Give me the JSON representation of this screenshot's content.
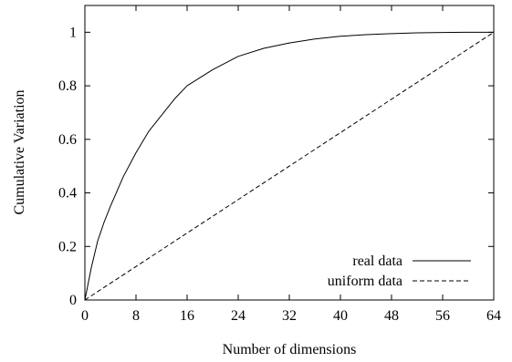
{
  "chart_data": {
    "type": "line",
    "title": "",
    "xlabel": "Number of dimensions",
    "ylabel": "Cumulative Variation",
    "xlim": [
      0,
      64
    ],
    "ylim": [
      0,
      1.1
    ],
    "xticks": [
      0,
      8,
      16,
      24,
      32,
      40,
      48,
      56,
      64
    ],
    "xtick_labels": [
      "0",
      "8",
      "16",
      "24",
      "32",
      "40",
      "48",
      "56",
      "64"
    ],
    "yticks": [
      0,
      0.2,
      0.4,
      0.6,
      0.8,
      1
    ],
    "ytick_labels": [
      "0",
      "0.2",
      "0.4",
      "0.6",
      "0.8",
      "1"
    ],
    "grid": false,
    "legend_position": "bottom-right",
    "series": [
      {
        "name": "real data",
        "line_style": "solid",
        "color": "#000000",
        "x": [
          0,
          1,
          2,
          3,
          4,
          6,
          8,
          10,
          12,
          14,
          16,
          20,
          24,
          28,
          32,
          36,
          40,
          44,
          48,
          52,
          56,
          60,
          64
        ],
        "y": [
          0,
          0.12,
          0.22,
          0.29,
          0.35,
          0.46,
          0.55,
          0.63,
          0.69,
          0.75,
          0.8,
          0.86,
          0.91,
          0.94,
          0.96,
          0.975,
          0.985,
          0.991,
          0.995,
          0.998,
          0.999,
          1.0,
          1.0
        ]
      },
      {
        "name": "uniform data",
        "line_style": "dashed",
        "color": "#000000",
        "x": [
          0,
          64
        ],
        "y": [
          0,
          1
        ]
      }
    ]
  }
}
